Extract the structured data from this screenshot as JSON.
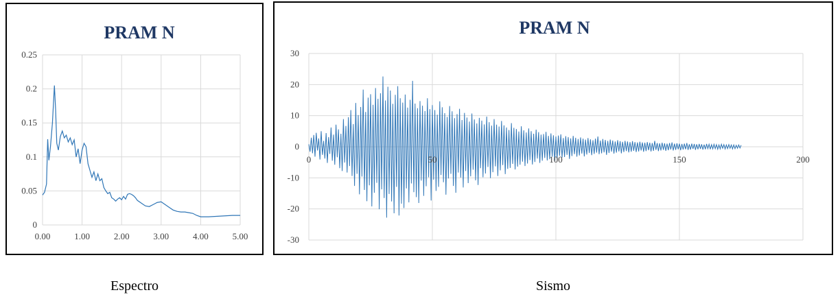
{
  "colors": {
    "series": "#2e75b6",
    "grid": "#d9d9d9",
    "axis": "#bfbfbf",
    "title": "#1f3864",
    "text": "#404040"
  },
  "captions": {
    "left": "Espectro",
    "right": "Sismo"
  },
  "chart_data": [
    {
      "type": "line",
      "title": "PRAM N",
      "xlabel": "",
      "ylabel": "",
      "xlim": [
        0,
        5
      ],
      "ylim": [
        0,
        0.25
      ],
      "x_ticks": [
        "0.00",
        "1.00",
        "2.00",
        "3.00",
        "4.00",
        "5.00"
      ],
      "y_ticks": [
        "0",
        "0.05",
        "0.1",
        "0.15",
        "0.2",
        "0.25"
      ],
      "grid": true,
      "series": [
        {
          "x": [
            0,
            0.05,
            0.1,
            0.13,
            0.16,
            0.2,
            0.25,
            0.3,
            0.33,
            0.36,
            0.4,
            0.45,
            0.5,
            0.55,
            0.6,
            0.65,
            0.7,
            0.75,
            0.8,
            0.85,
            0.9,
            0.95,
            1.0,
            1.05,
            1.1,
            1.15,
            1.2,
            1.25,
            1.3,
            1.35,
            1.4,
            1.45,
            1.5,
            1.55,
            1.6,
            1.65,
            1.7,
            1.75,
            1.8,
            1.85,
            1.9,
            1.95,
            2.0,
            2.05,
            2.1,
            2.15,
            2.2,
            2.25,
            2.3,
            2.35,
            2.4,
            2.5,
            2.6,
            2.7,
            2.8,
            2.9,
            3.0,
            3.1,
            3.2,
            3.3,
            3.4,
            3.5,
            3.6,
            3.7,
            3.8,
            3.9,
            4.0,
            4.2,
            4.5,
            4.8,
            5.0
          ],
          "y": [
            0.044,
            0.048,
            0.06,
            0.126,
            0.095,
            0.115,
            0.15,
            0.205,
            0.17,
            0.12,
            0.11,
            0.13,
            0.138,
            0.128,
            0.132,
            0.122,
            0.128,
            0.118,
            0.125,
            0.1,
            0.112,
            0.09,
            0.11,
            0.12,
            0.115,
            0.09,
            0.08,
            0.07,
            0.078,
            0.065,
            0.075,
            0.065,
            0.068,
            0.055,
            0.05,
            0.046,
            0.048,
            0.04,
            0.038,
            0.035,
            0.038,
            0.04,
            0.037,
            0.042,
            0.038,
            0.045,
            0.046,
            0.045,
            0.043,
            0.04,
            0.036,
            0.032,
            0.028,
            0.027,
            0.03,
            0.033,
            0.034,
            0.03,
            0.026,
            0.022,
            0.02,
            0.019,
            0.019,
            0.018,
            0.017,
            0.014,
            0.012,
            0.012,
            0.013,
            0.014,
            0.014
          ]
        }
      ]
    },
    {
      "type": "line",
      "title": "PRAM N",
      "xlabel": "",
      "ylabel": "",
      "xlim": [
        0,
        200
      ],
      "ylim": [
        -30,
        30
      ],
      "x_ticks": [
        "0",
        "50",
        "100",
        "150",
        "200"
      ],
      "y_ticks": [
        "30",
        "20",
        "10",
        "0",
        "-10",
        "-20",
        "-30"
      ],
      "grid": true,
      "series": [
        {
          "x_start": 0,
          "x_step": 0.5,
          "y": [
            0.8,
            -1.6,
            2.9,
            -2.1,
            3.8,
            -3.2,
            4.5,
            -1.2,
            2.7,
            -4.1,
            5.0,
            -2.6,
            1.9,
            -3.8,
            4.4,
            -5.2,
            3.1,
            -2.3,
            6.2,
            -4.5,
            3.9,
            -5.8,
            7.1,
            -3.4,
            5.6,
            -6.9,
            4.2,
            -7.8,
            8.9,
            -5.1,
            6.7,
            -8.3,
            9.5,
            -6.2,
            11.8,
            -9.4,
            7.3,
            -12.6,
            14.1,
            -8.7,
            10.2,
            -15.3,
            12.8,
            -9.6,
            18.4,
            -13.9,
            11.2,
            -17.5,
            15.8,
            -12.4,
            16.9,
            -19.2,
            13.5,
            -14.8,
            18.9,
            -11.6,
            15.4,
            -20.1,
            17.2,
            -13.7,
            22.6,
            -16.5,
            14.9,
            -22.8,
            19.3,
            -15.2,
            18.1,
            -17.6,
            13.8,
            -21.4,
            16.7,
            -12.9,
            19.5,
            -22.1,
            15.6,
            -18.3,
            14.2,
            -19.7,
            16.8,
            -13.4,
            12.6,
            -17.9,
            15.1,
            -11.8,
            21.2,
            -14.6,
            13.9,
            -16.2,
            12.4,
            -18.1,
            14.7,
            -10.9,
            13.2,
            -15.8,
            11.5,
            -12.7,
            15.6,
            -9.8,
            12.1,
            -17.3,
            13.4,
            -10.6,
            11.8,
            -14.2,
            10.3,
            -12.9,
            14.6,
            -9.1,
            12.7,
            -11.4,
            10.8,
            -15.4,
            9.6,
            -10.2,
            13.1,
            -8.7,
            11.4,
            -12.6,
            9.2,
            -14.8,
            10.5,
            -8.3,
            12.2,
            -9.9,
            8.6,
            -13.1,
            10.9,
            -7.8,
            9.4,
            -11.7,
            8.1,
            -9.5,
            10.7,
            -7.4,
            8.8,
            -10.8,
            7.5,
            -12.3,
            9.3,
            -6.9,
            8.4,
            -9.8,
            7.2,
            -8.6,
            9.7,
            -6.5,
            7.9,
            -10.1,
            6.8,
            -8.2,
            8.9,
            -6.3,
            7.1,
            -9.4,
            6.5,
            -7.6,
            8.3,
            -5.9,
            6.9,
            -8.8,
            6.2,
            -7.1,
            5.4,
            -6.8,
            7.6,
            -5.5,
            6.1,
            -7.3,
            5.7,
            -6.4,
            4.9,
            -5.8,
            6.6,
            -4.8,
            5.3,
            -6.2,
            4.6,
            -5.4,
            5.9,
            -4.3,
            5.0,
            -5.7,
            4.2,
            -4.9,
            5.5,
            -3.8,
            4.7,
            -5.2,
            3.9,
            -4.5,
            4.1,
            -3.6,
            4.8,
            -4.4,
            3.5,
            -4.0,
            4.3,
            -3.2,
            3.7,
            -4.6,
            3.3,
            -3.8,
            3.6,
            -2.9,
            4.0,
            -3.5,
            2.8,
            -3.3,
            3.4,
            -2.6,
            3.1,
            -3.9,
            2.7,
            -3.0,
            3.5,
            -2.4,
            2.9,
            -3.2,
            2.5,
            -2.8,
            3.0,
            -2.2,
            2.6,
            -3.1,
            2.3,
            -2.5,
            2.8,
            -2.0,
            2.4,
            -2.7,
            2.1,
            -2.3,
            2.6,
            -1.9,
            3.3,
            -2.4,
            2.0,
            -2.1,
            2.5,
            -1.8,
            2.2,
            -2.6,
            1.9,
            -2.0,
            2.3,
            -1.6,
            2.0,
            -2.2,
            1.7,
            -1.9,
            2.1,
            -1.5,
            1.8,
            -2.1,
            1.6,
            -1.7,
            1.9,
            -1.4,
            1.7,
            -1.8,
            1.5,
            -1.6,
            1.8,
            -1.3,
            1.5,
            -1.7,
            1.4,
            -1.5,
            1.6,
            -1.2,
            1.4,
            -1.6,
            1.3,
            -1.4,
            1.5,
            -1.1,
            1.3,
            -1.5,
            1.2,
            -1.3,
            1.9,
            -1.0,
            1.2,
            -1.4,
            1.1,
            -1.2,
            1.3,
            -1.0,
            1.1,
            -1.3,
            1.0,
            -1.1,
            1.2,
            -0.9,
            1.4,
            -1.2,
            1.0,
            -1.0,
            1.1,
            -0.8,
            1.0,
            -1.1,
            0.9,
            -0.9,
            1.0,
            -0.8,
            1.2,
            -1.0,
            0.8,
            -0.9,
            1.0,
            -0.7,
            0.9,
            -1.0,
            0.8,
            -0.8,
            0.9,
            -0.7,
            0.8,
            -0.9,
            0.7,
            -0.8,
            0.9,
            -0.6,
            0.8,
            -0.8,
            0.7,
            -0.7,
            0.8,
            -0.6,
            0.7,
            -0.8,
            0.6,
            -0.7,
            0.8,
            -0.5,
            0.7,
            -0.7,
            0.6,
            -0.6,
            0.7,
            -0.5,
            0.6,
            -0.7,
            0.6,
            -0.6,
            0.5,
            -0.5,
            0.6,
            -0.4,
            0.5
          ]
        }
      ]
    }
  ]
}
